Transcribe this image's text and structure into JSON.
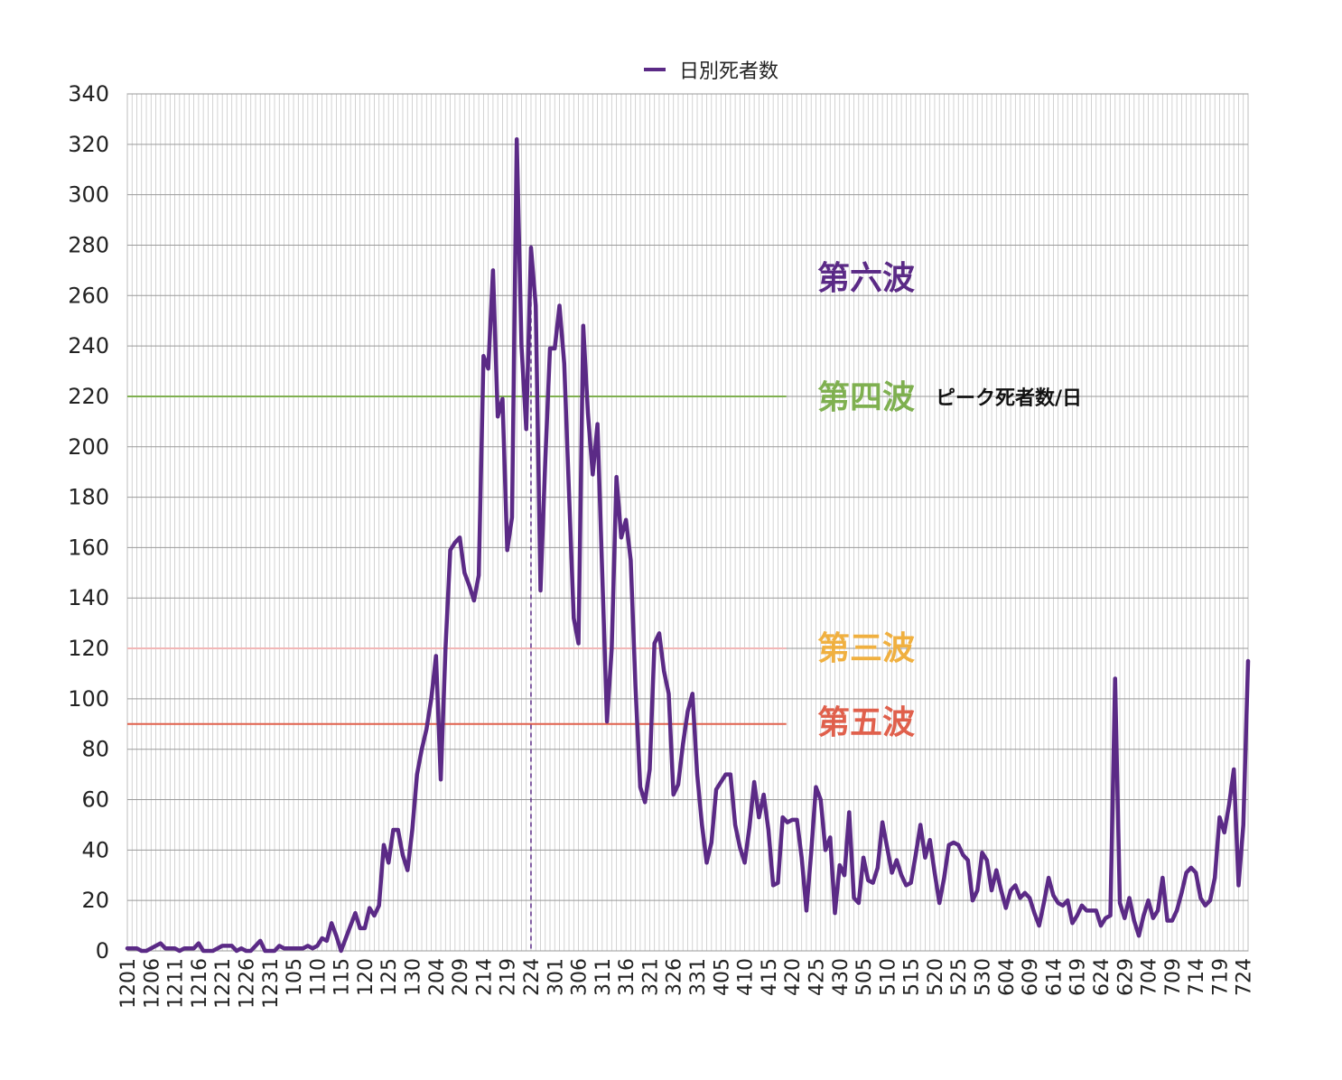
{
  "chart_data": {
    "type": "line",
    "legend": {
      "label": "日別死者数",
      "position": "top-center",
      "color": "#5b2a86"
    },
    "ylim": [
      0,
      340
    ],
    "y_ticks": [
      0,
      20,
      40,
      60,
      80,
      100,
      120,
      140,
      160,
      180,
      200,
      220,
      240,
      260,
      280,
      300,
      320,
      340
    ],
    "x_tick_labels": [
      "1201",
      "1206",
      "1211",
      "1216",
      "1221",
      "1226",
      "1231",
      "105",
      "110",
      "115",
      "120",
      "125",
      "130",
      "204",
      "209",
      "214",
      "219",
      "224",
      "301",
      "306",
      "311",
      "316",
      "321",
      "326",
      "331",
      "405",
      "410",
      "415",
      "420",
      "425",
      "430",
      "505",
      "510",
      "515",
      "520",
      "525",
      "530",
      "604",
      "609",
      "614",
      "619",
      "624",
      "629",
      "704",
      "709",
      "714",
      "719",
      "724"
    ],
    "grid": true,
    "series": [
      {
        "name": "日別死者数",
        "color": "#5b2a86",
        "values": [
          1,
          1,
          1,
          0,
          0,
          1,
          2,
          3,
          1,
          1,
          1,
          0,
          1,
          1,
          1,
          3,
          0,
          0,
          0,
          1,
          2,
          2,
          2,
          0,
          1,
          0,
          0,
          2,
          4,
          0,
          0,
          0,
          2,
          1,
          1,
          1,
          1,
          1,
          2,
          1,
          2,
          5,
          4,
          11,
          6,
          0,
          5,
          10,
          15,
          9,
          9,
          17,
          14,
          18,
          42,
          35,
          48,
          48,
          38,
          32,
          48,
          70,
          80,
          88,
          100,
          117,
          68,
          120,
          159,
          162,
          164,
          150,
          145,
          139,
          149,
          236,
          231,
          270,
          212,
          219,
          159,
          172,
          322,
          240,
          207,
          279,
          256,
          143,
          194,
          239,
          239,
          256,
          233,
          182,
          132,
          122,
          248,
          213,
          189,
          209,
          150,
          91,
          120,
          188,
          164,
          171,
          155,
          105,
          65,
          59,
          72,
          122,
          126,
          111,
          102,
          62,
          66,
          82,
          95,
          102,
          70,
          50,
          35,
          43,
          64,
          67,
          70,
          70,
          50,
          41,
          35,
          49,
          67,
          53,
          62,
          48,
          26,
          27,
          53,
          51,
          52,
          52,
          37,
          16,
          39,
          65,
          60,
          40,
          45,
          15,
          34,
          30,
          55,
          21,
          19,
          37,
          28,
          27,
          33,
          51,
          41,
          31,
          36,
          30,
          26,
          27,
          38,
          50,
          37,
          44,
          31,
          19,
          29,
          42,
          43,
          42,
          38,
          36,
          20,
          24,
          39,
          36,
          24,
          32,
          24,
          17,
          24,
          26,
          21,
          23,
          21,
          15,
          10,
          19,
          29,
          22,
          19,
          18,
          20,
          11,
          14,
          18,
          16,
          16,
          16,
          10,
          13,
          14,
          108,
          19,
          13,
          21,
          12,
          6,
          14,
          20,
          13,
          16,
          29,
          12,
          12,
          16,
          23,
          31,
          33,
          31,
          21,
          18,
          20,
          29,
          53,
          47,
          58,
          72,
          26,
          50,
          115
        ]
      }
    ],
    "reference_lines": [
      {
        "label": "第六波",
        "value": null,
        "color": "#5b2a86"
      },
      {
        "label": "第四波",
        "value": 220,
        "color": "#7fb050",
        "note": "ピーク死者数/日"
      },
      {
        "label": "第三波",
        "value": 120,
        "color": "#f0b040",
        "line_color": "#f2b7b7"
      },
      {
        "label": "第五波",
        "value": 90,
        "color": "#e0604c"
      }
    ],
    "vertical_marker": {
      "x_label": "224",
      "color": "#5b2a86",
      "style": "dashed"
    }
  }
}
